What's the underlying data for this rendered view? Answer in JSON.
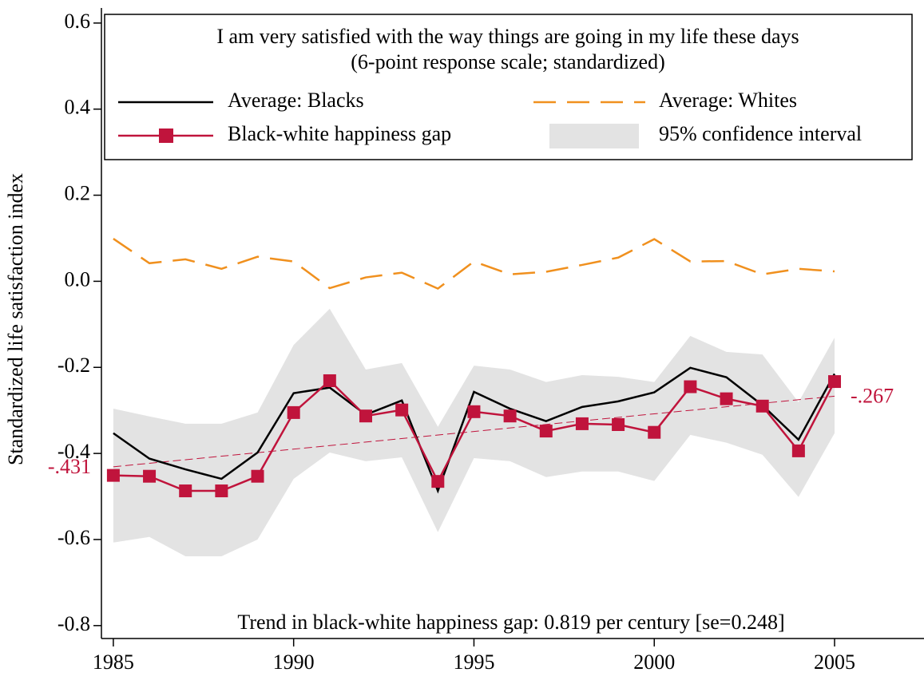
{
  "chart_data": {
    "type": "line",
    "ylabel": "Standardized life satisfaction index",
    "legend_title": [
      "I am very satisfied with the way things are going in my life these days",
      "(6-point response scale; standardized)"
    ],
    "annotation": "Trend in black-white happiness gap: 0.819 per century [se=0.248]",
    "x": [
      1985,
      1986,
      1987,
      1988,
      1989,
      1990,
      1991,
      1992,
      1993,
      1994,
      1995,
      1996,
      1997,
      1998,
      1999,
      2000,
      2001,
      2002,
      2003,
      2004,
      2005
    ],
    "xlim": [
      1984.67,
      2007.48
    ],
    "xticks": [
      1985,
      1990,
      1995,
      2000,
      2005
    ],
    "ylim": [
      -0.83,
      0.635
    ],
    "yticks": [
      0.6,
      0.4,
      0.2,
      {
        "value": 0,
        "label": "0.0"
      },
      -0.2,
      -0.4,
      -0.6,
      -0.8
    ],
    "band": {
      "name": "95% confidence interval",
      "color": "#e3e3e3",
      "upper": [
        -0.296,
        -0.314,
        -0.331,
        -0.331,
        -0.305,
        -0.148,
        -0.064,
        -0.205,
        -0.19,
        -0.338,
        -0.196,
        -0.205,
        -0.234,
        -0.218,
        -0.222,
        -0.234,
        -0.127,
        -0.164,
        -0.17,
        -0.281,
        -0.131
      ],
      "lower": [
        -0.607,
        -0.594,
        -0.639,
        -0.639,
        -0.6,
        -0.459,
        -0.398,
        -0.418,
        -0.409,
        -0.583,
        -0.411,
        -0.418,
        -0.455,
        -0.442,
        -0.442,
        -0.464,
        -0.357,
        -0.375,
        -0.403,
        -0.501,
        -0.353
      ]
    },
    "series": [
      {
        "name": "Average: Blacks",
        "color": "#000000",
        "dash": false,
        "markers": false,
        "values": [
          -0.353,
          -0.412,
          -0.437,
          -0.459,
          -0.398,
          -0.26,
          -0.247,
          -0.31,
          -0.277,
          -0.487,
          -0.257,
          -0.296,
          -0.325,
          -0.292,
          -0.279,
          -0.258,
          -0.201,
          -0.223,
          -0.288,
          -0.368,
          -0.215
        ]
      },
      {
        "name": "Average: Whites",
        "color": "#f0901e",
        "dash": true,
        "markers": false,
        "values": [
          0.099,
          0.042,
          0.051,
          0.029,
          0.057,
          0.046,
          -0.016,
          0.009,
          0.02,
          -0.017,
          0.046,
          0.016,
          0.022,
          0.038,
          0.055,
          0.098,
          0.046,
          0.047,
          0.016,
          0.029,
          0.023
        ]
      },
      {
        "name": "Black-white happiness gap",
        "color": "#c0143c",
        "dash": false,
        "markers": true,
        "values": [
          -0.451,
          -0.453,
          -0.487,
          -0.487,
          -0.453,
          -0.305,
          -0.231,
          -0.313,
          -0.299,
          -0.465,
          -0.303,
          -0.313,
          -0.348,
          -0.331,
          -0.333,
          -0.351,
          -0.245,
          -0.273,
          -0.29,
          -0.394,
          -0.233
        ]
      }
    ],
    "trend": {
      "x": [
        1985,
        2005
      ],
      "values": [
        -0.431,
        -0.267
      ],
      "value_labels": [
        "-.431",
        "-.267"
      ],
      "color": "#c0143c"
    }
  }
}
